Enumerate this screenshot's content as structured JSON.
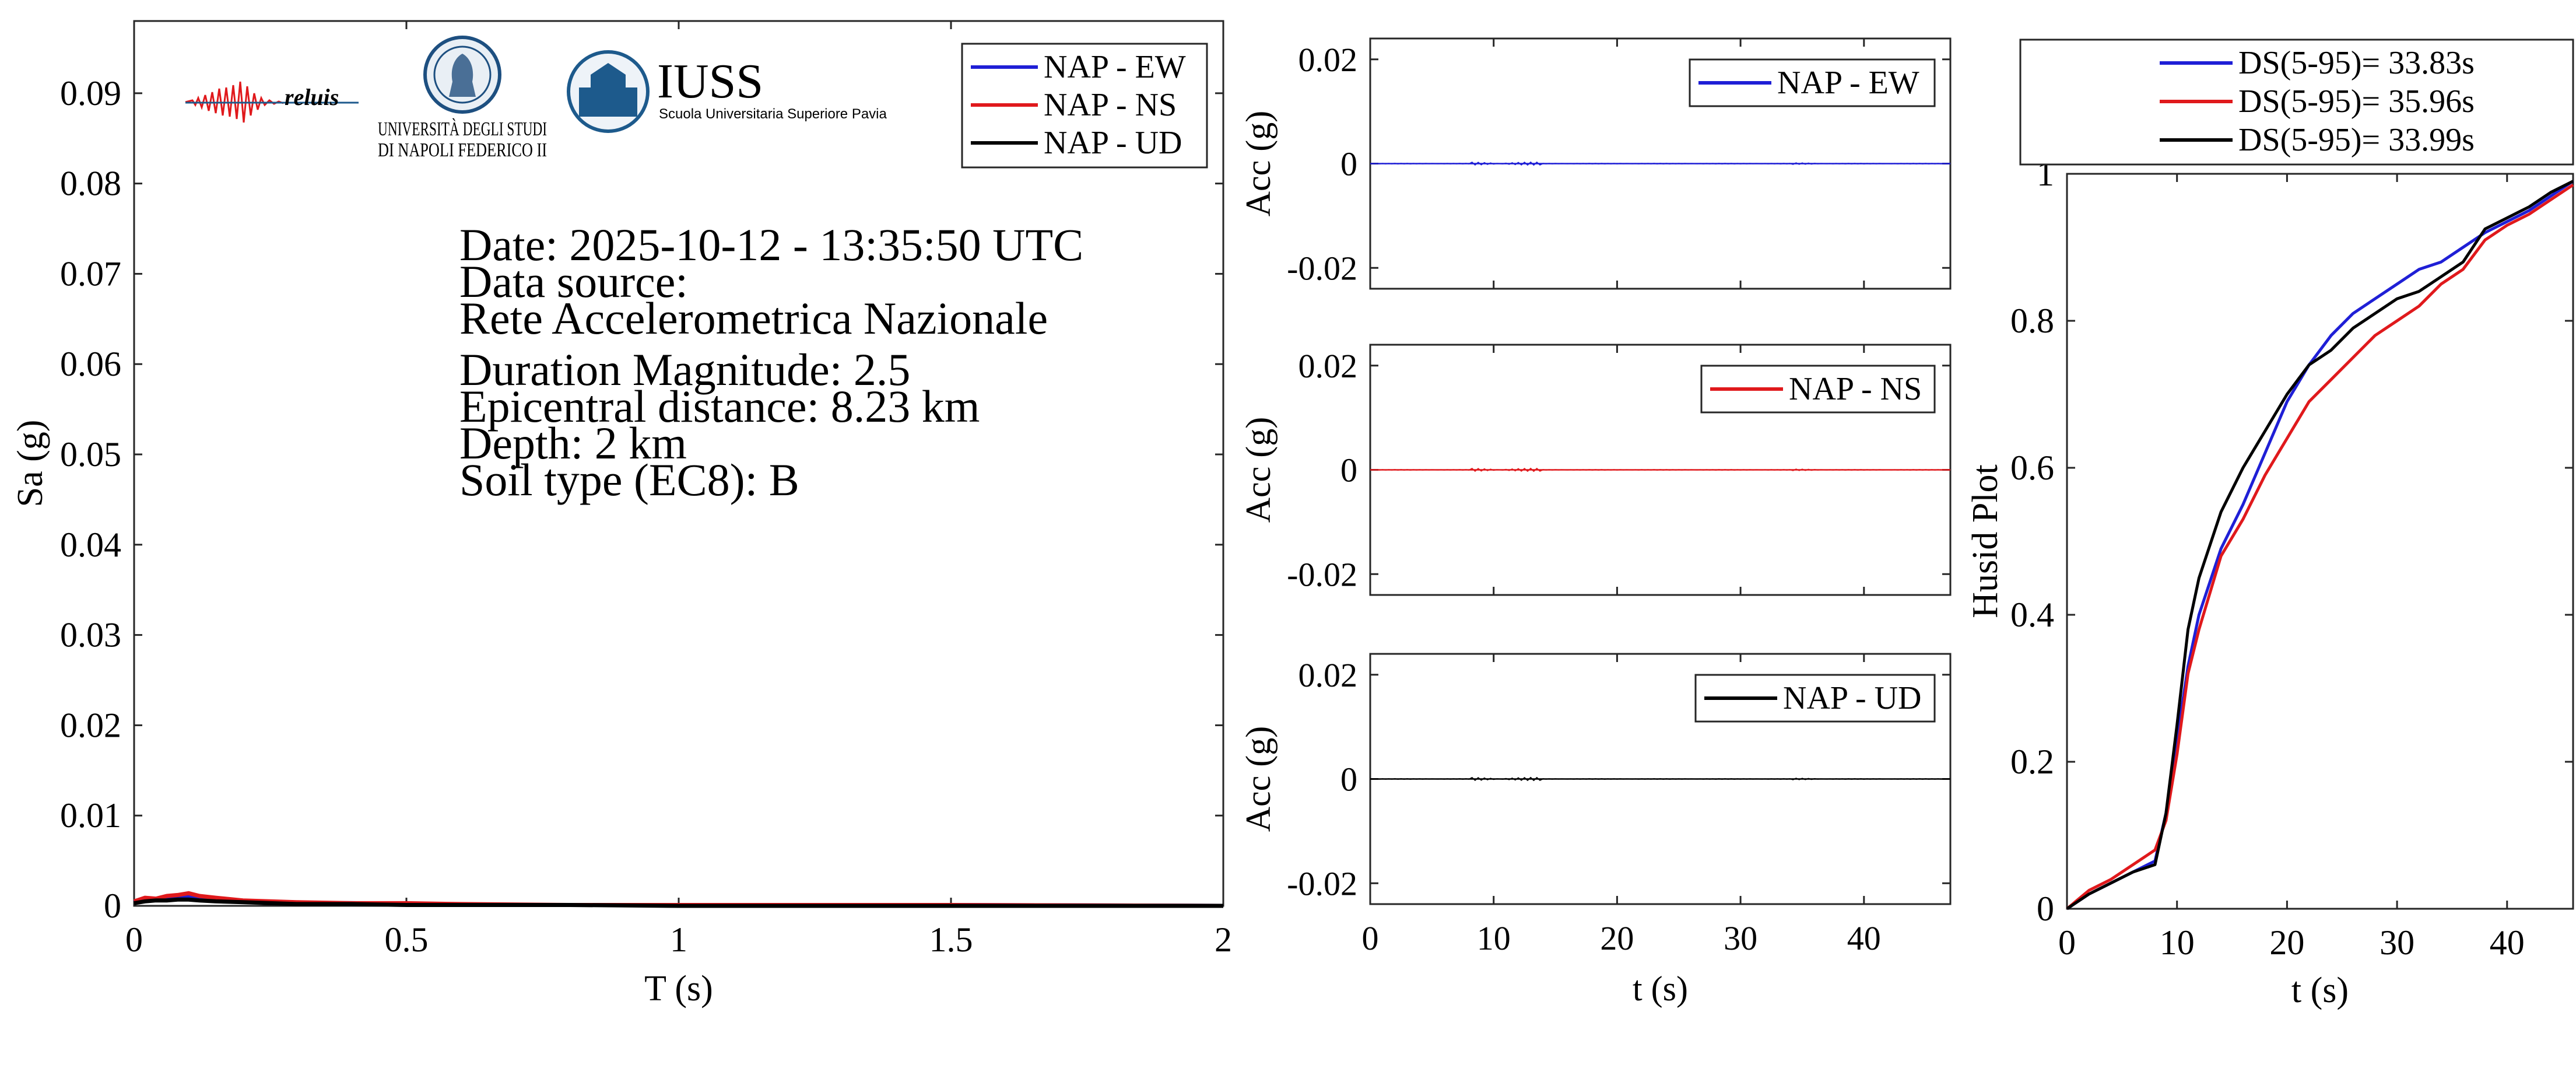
{
  "colors": {
    "ew": "#1f1fd6",
    "ns": "#e0191c",
    "ud": "#000000",
    "axis": "#262626",
    "iuss": "#1d5a8c"
  },
  "logos": {
    "reluis": "reluis",
    "unina_line1": "UNIVERSITÀ DEGLI STUDI",
    "unina_line2": "DI NAPOLI FEDERICO II",
    "iuss_name": "IUSS",
    "iuss_sub": "Scuola Universitaria Superiore Pavia"
  },
  "info": {
    "date": "Date: 2025-10-12 - 13:35:50 UTC",
    "source_label": "Data source:",
    "source": "Rete Accelerometrica Nazionale",
    "magnitude": "Duration Magnitude: 2.5",
    "distance": "Epicentral distance: 8.23 km",
    "depth": "Depth: 2 km",
    "soil": "Soil type (EC8): B"
  },
  "chart_data": [
    {
      "id": "spectrum",
      "type": "line",
      "xlabel": "T (s)",
      "ylabel": "Sa (g)",
      "xlim": [
        0,
        2
      ],
      "ylim": [
        0,
        0.098
      ],
      "xticks": [
        0,
        0.5,
        1,
        1.5,
        2
      ],
      "xtick_labels": [
        "0",
        "0.5",
        "1",
        "1.5",
        "2"
      ],
      "yticks": [
        0,
        0.01,
        0.02,
        0.03,
        0.04,
        0.05,
        0.06,
        0.07,
        0.08,
        0.09
      ],
      "ytick_labels": [
        "0",
        "0.01",
        "0.02",
        "0.03",
        "0.04",
        "0.05",
        "0.06",
        "0.07",
        "0.08",
        "0.09"
      ],
      "grid": false,
      "legend": "top-right",
      "series": [
        {
          "name": "NAP - EW",
          "color": "#1f1fd6",
          "x": [
            0,
            0.02,
            0.04,
            0.06,
            0.08,
            0.1,
            0.12,
            0.15,
            0.2,
            0.25,
            0.3,
            0.4,
            0.5,
            0.6,
            0.8,
            1.0,
            1.5,
            2.0
          ],
          "y": [
            0.0004,
            0.0008,
            0.0007,
            0.0009,
            0.001,
            0.0011,
            0.0009,
            0.0007,
            0.0005,
            0.0004,
            0.0003,
            0.0003,
            0.0002,
            0.0001,
            0.0001,
            0.0001,
            0.0001,
            0.0
          ]
        },
        {
          "name": "NAP - NS",
          "color": "#e0191c",
          "x": [
            0,
            0.02,
            0.04,
            0.06,
            0.08,
            0.1,
            0.12,
            0.15,
            0.2,
            0.25,
            0.3,
            0.4,
            0.5,
            0.6,
            0.8,
            1.0,
            1.5,
            2.0
          ],
          "y": [
            0.0005,
            0.0009,
            0.0008,
            0.0011,
            0.0012,
            0.0014,
            0.0011,
            0.0009,
            0.0006,
            0.0005,
            0.0004,
            0.0003,
            0.0003,
            0.0002,
            0.0001,
            0.0001,
            0.0001,
            0.0
          ]
        },
        {
          "name": "NAP - UD",
          "color": "#000000",
          "x": [
            0,
            0.02,
            0.04,
            0.06,
            0.08,
            0.1,
            0.12,
            0.15,
            0.2,
            0.25,
            0.3,
            0.4,
            0.5,
            0.6,
            0.8,
            1.0,
            1.5,
            2.0
          ],
          "y": [
            0.0003,
            0.0005,
            0.0006,
            0.0006,
            0.0007,
            0.0007,
            0.0006,
            0.0005,
            0.0004,
            0.0003,
            0.0002,
            0.0002,
            0.0001,
            0.0001,
            0.0001,
            0.0,
            0.0,
            0.0
          ]
        }
      ]
    },
    {
      "id": "acc-ew",
      "type": "line",
      "ylabel": "Acc (g)",
      "xlim": [
        0,
        47
      ],
      "ylim": [
        -0.024,
        0.024
      ],
      "xticks": [
        0,
        10,
        20,
        30,
        40
      ],
      "yticks": [
        -0.02,
        0,
        0.02
      ],
      "ytick_labels": [
        "-0.02",
        "0",
        "0.02"
      ],
      "grid": false,
      "legend": "top-right",
      "series": [
        {
          "name": "NAP - EW",
          "color": "#1f1fd6",
          "x": [
            0,
            47
          ],
          "y": [
            0,
            0
          ]
        }
      ]
    },
    {
      "id": "acc-ns",
      "type": "line",
      "ylabel": "Acc (g)",
      "xlim": [
        0,
        47
      ],
      "ylim": [
        -0.024,
        0.024
      ],
      "xticks": [
        0,
        10,
        20,
        30,
        40
      ],
      "yticks": [
        -0.02,
        0,
        0.02
      ],
      "ytick_labels": [
        "-0.02",
        "0",
        "0.02"
      ],
      "grid": false,
      "legend": "top-right",
      "series": [
        {
          "name": "NAP - NS",
          "color": "#e0191c",
          "x": [
            0,
            47
          ],
          "y": [
            0,
            0
          ]
        }
      ]
    },
    {
      "id": "acc-ud",
      "type": "line",
      "xlabel": "t (s)",
      "ylabel": "Acc (g)",
      "xlim": [
        0,
        47
      ],
      "ylim": [
        -0.024,
        0.024
      ],
      "xticks": [
        0,
        10,
        20,
        30,
        40
      ],
      "xtick_labels": [
        "0",
        "10",
        "20",
        "30",
        "40"
      ],
      "yticks": [
        -0.02,
        0,
        0.02
      ],
      "ytick_labels": [
        "-0.02",
        "0",
        "0.02"
      ],
      "grid": false,
      "legend": "top-right",
      "series": [
        {
          "name": "NAP - UD",
          "color": "#000000",
          "x": [
            0,
            47
          ],
          "y": [
            0,
            0
          ]
        }
      ]
    },
    {
      "id": "husid",
      "type": "line",
      "xlabel": "t (s)",
      "ylabel": "Husid Plot",
      "xlim": [
        0,
        46
      ],
      "ylim": [
        0,
        1
      ],
      "xticks": [
        0,
        10,
        20,
        30,
        40
      ],
      "xtick_labels": [
        "0",
        "10",
        "20",
        "30",
        "40"
      ],
      "yticks": [
        0,
        0.2,
        0.4,
        0.6,
        0.8,
        1
      ],
      "ytick_labels": [
        "0",
        "0.2",
        "0.4",
        "0.6",
        "0.8",
        "1"
      ],
      "grid": false,
      "legend": "top-outside",
      "series": [
        {
          "name": "DS(5-95)= 33.83s",
          "color": "#1f1fd6",
          "x": [
            0,
            2,
            4,
            6,
            8,
            9,
            10,
            11,
            12,
            14,
            16,
            18,
            20,
            22,
            24,
            26,
            28,
            30,
            32,
            34,
            36,
            38,
            40,
            42,
            44,
            46
          ],
          "y": [
            0,
            0.02,
            0.035,
            0.05,
            0.065,
            0.13,
            0.23,
            0.33,
            0.4,
            0.49,
            0.55,
            0.62,
            0.69,
            0.74,
            0.78,
            0.81,
            0.83,
            0.85,
            0.87,
            0.88,
            0.9,
            0.92,
            0.935,
            0.95,
            0.97,
            0.99
          ]
        },
        {
          "name": "DS(5-95)= 35.96s",
          "color": "#e0191c",
          "x": [
            0,
            2,
            4,
            6,
            8,
            9,
            10,
            11,
            12,
            14,
            16,
            18,
            20,
            22,
            24,
            26,
            28,
            30,
            32,
            34,
            36,
            38,
            40,
            42,
            44,
            46
          ],
          "y": [
            0,
            0.025,
            0.04,
            0.06,
            0.08,
            0.12,
            0.21,
            0.32,
            0.38,
            0.48,
            0.53,
            0.59,
            0.64,
            0.69,
            0.72,
            0.75,
            0.78,
            0.8,
            0.82,
            0.85,
            0.87,
            0.91,
            0.93,
            0.945,
            0.965,
            0.985
          ]
        },
        {
          "name": "DS(5-95)= 33.99s",
          "color": "#000000",
          "x": [
            0,
            2,
            4,
            6,
            8,
            9,
            10,
            11,
            12,
            14,
            16,
            18,
            20,
            22,
            24,
            26,
            28,
            30,
            32,
            34,
            36,
            38,
            40,
            42,
            44,
            46
          ],
          "y": [
            0,
            0.02,
            0.035,
            0.05,
            0.06,
            0.13,
            0.25,
            0.38,
            0.45,
            0.54,
            0.6,
            0.65,
            0.7,
            0.74,
            0.76,
            0.79,
            0.81,
            0.83,
            0.84,
            0.86,
            0.88,
            0.925,
            0.94,
            0.955,
            0.975,
            0.99
          ]
        }
      ]
    }
  ]
}
